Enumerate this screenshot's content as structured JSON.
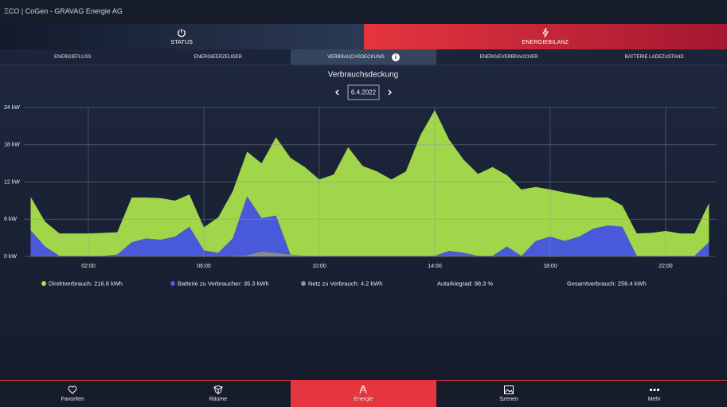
{
  "header": {
    "title": "ΞCO | CoGen - GRAVAG Energie AG"
  },
  "tabs": [
    "STATUS",
    "ENERGIEBILANZ"
  ],
  "subtabs": [
    "ENERGIEFLUSS",
    "ENERGIEERZEUGER",
    "VERBRAUCHSDECKUNG",
    "ENERGIEVERBRAUCHER",
    "BATTERIE LADEZUSTAND"
  ],
  "chart_data": {
    "type": "area",
    "stacked": true,
    "title": "Verbrauchsdeckung",
    "date": "6.4.2022",
    "x": [
      0,
      0.5,
      1,
      1.5,
      2,
      2.5,
      3,
      3.5,
      4,
      4.5,
      5,
      5.5,
      6,
      6.5,
      7,
      7.5,
      8,
      8.5,
      9,
      9.5,
      10,
      10.5,
      11,
      11.5,
      12,
      12.5,
      13,
      13.5,
      14,
      14.5,
      15,
      15.5,
      16,
      16.5,
      17,
      17.5,
      18,
      18.5,
      19,
      19.5,
      20,
      20.5,
      21,
      21.5,
      22,
      22.5,
      23,
      23.5
    ],
    "series": [
      {
        "name": "Direktverbrauch: 216.8 kWh",
        "color": "#a9e04c",
        "values": [
          5.4,
          4.0,
          3.6,
          3.6,
          3.6,
          3.7,
          3.6,
          7.2,
          6.6,
          6.7,
          5.8,
          5.2,
          3.7,
          5.7,
          7.6,
          7.2,
          8.8,
          12.6,
          15.6,
          14.3,
          12.3,
          13.1,
          17.5,
          14.5,
          13.6,
          12.3,
          13.6,
          19.4,
          23.5,
          17.9,
          15.0,
          13.2,
          14.3,
          11.5,
          10.7,
          8.7,
          7.6,
          7.8,
          6.7,
          5.0,
          4.5,
          3.4,
          3.6,
          3.7,
          4.0,
          3.6,
          3.6,
          6.3
        ]
      },
      {
        "name": "Batterie zu Verbraucher: 35.3 kWh",
        "color": "#4b5ee4",
        "values": [
          4.1,
          1.5,
          0,
          0,
          0,
          0,
          0.2,
          2.2,
          2.8,
          2.6,
          3.1,
          4.7,
          0.9,
          0.5,
          2.8,
          9.5,
          5.4,
          6.0,
          0,
          0,
          0,
          0,
          0,
          0,
          0,
          0,
          0,
          0,
          0,
          0.8,
          0.5,
          0,
          0,
          1.5,
          0,
          2.4,
          3.1,
          2.4,
          3.1,
          4.4,
          4.9,
          4.7,
          0,
          0,
          0,
          0,
          0,
          2.2
        ]
      },
      {
        "name": "Netz zu Verbrauch: 4.2 kWh",
        "color": "#8c919b",
        "values": [
          0.1,
          0.1,
          0.1,
          0.1,
          0.1,
          0.1,
          0.1,
          0.1,
          0.1,
          0.1,
          0.1,
          0.1,
          0.1,
          0.1,
          0.1,
          0.2,
          0.8,
          0.6,
          0.3,
          0.1,
          0.1,
          0.1,
          0.1,
          0.1,
          0.1,
          0.1,
          0.1,
          0.1,
          0.1,
          0.1,
          0.1,
          0.1,
          0.1,
          0.1,
          0.1,
          0.1,
          0.1,
          0.1,
          0.1,
          0.1,
          0.1,
          0.1,
          0.1,
          0.1,
          0.1,
          0.1,
          0.1,
          0.1
        ]
      }
    ],
    "stats": [
      "Autarkiegrad: 98.3 %",
      "Gesamtverbrauch: 256.4 kWh"
    ],
    "xlim": [
      0,
      23.75
    ],
    "ylim": [
      0,
      24
    ],
    "xticks": [
      {
        "value": 2,
        "label": "02:00"
      },
      {
        "value": 6,
        "label": "06:00"
      },
      {
        "value": 10,
        "label": "10:00"
      },
      {
        "value": 14,
        "label": "14:00"
      },
      {
        "value": 18,
        "label": "18:00"
      },
      {
        "value": 22,
        "label": "22:00"
      }
    ],
    "yticks": [
      {
        "value": 0,
        "label": "0 kW"
      },
      {
        "value": 6,
        "label": "6 kW"
      },
      {
        "value": 12,
        "label": "12 kW"
      },
      {
        "value": 18,
        "label": "18 kW"
      },
      {
        "value": 24,
        "label": "24 kW"
      }
    ],
    "grid": true
  },
  "nav": [
    "Favoriten",
    "Räume",
    "Energie",
    "Szenen",
    "Mehr"
  ]
}
